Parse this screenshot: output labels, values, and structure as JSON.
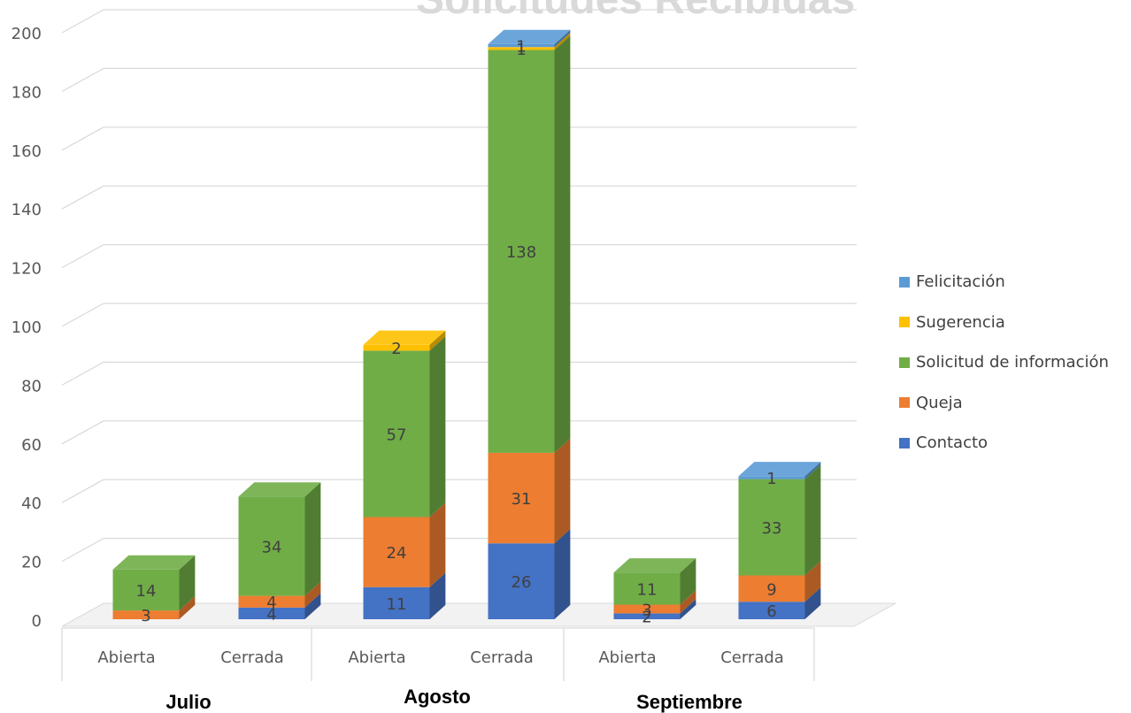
{
  "chart_data": {
    "type": "bar",
    "stacked": true,
    "title": "Solicitudes Recibidas",
    "groups": [
      {
        "label": "Julio",
        "categories": [
          "Abierta",
          "Cerrada"
        ]
      },
      {
        "label": "Agosto",
        "categories": [
          "Abierta",
          "Cerrada"
        ]
      },
      {
        "label": "Septiembre",
        "categories": [
          "Abierta",
          "Cerrada"
        ]
      }
    ],
    "categories": [
      "Abierta",
      "Cerrada",
      "Abierta",
      "Cerrada",
      "Abierta",
      "Cerrada"
    ],
    "series": [
      {
        "name": "Contacto",
        "color": "#4472c4",
        "values": [
          0,
          4,
          11,
          26,
          2,
          6
        ]
      },
      {
        "name": "Queja",
        "color": "#ed7d31",
        "values": [
          3,
          4,
          24,
          31,
          3,
          9
        ]
      },
      {
        "name": "Solicitud de información",
        "color": "#70ad47",
        "values": [
          14,
          34,
          57,
          138,
          11,
          33
        ]
      },
      {
        "name": "Sugerencia",
        "color": "#ffc000",
        "values": [
          0,
          0,
          2,
          1,
          0,
          0
        ]
      },
      {
        "name": "Felicitación",
        "color": "#5b9bd5",
        "values": [
          0,
          0,
          0,
          1,
          0,
          1
        ]
      }
    ],
    "ylim": [
      0,
      200
    ],
    "yticks": [
      0,
      20,
      40,
      60,
      80,
      100,
      120,
      140,
      160,
      180,
      200
    ],
    "grid": true,
    "legend_position": "right"
  },
  "legend": {
    "items": [
      {
        "label": "Felicitación",
        "color": "#5b9bd5"
      },
      {
        "label": "Sugerencia",
        "color": "#ffc000"
      },
      {
        "label": "Solicitud de información",
        "color": "#70ad47"
      },
      {
        "label": "Queja",
        "color": "#ed7d31"
      },
      {
        "label": "Contacto",
        "color": "#4472c4"
      }
    ]
  }
}
